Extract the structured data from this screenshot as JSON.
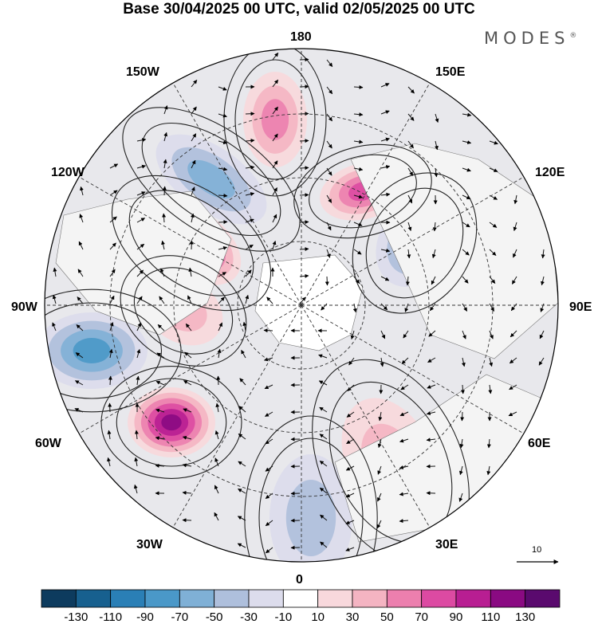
{
  "title": "Base 30/04/2025 00 UTC, valid 02/05/2025 00 UTC",
  "brand": "MODES",
  "brand_mark": "®",
  "longitude_labels": {
    "top": "180",
    "bottom": "0",
    "left": "90W",
    "right": "90E",
    "upper_left_1": "150W",
    "upper_left_2": "120W",
    "upper_right_1": "150E",
    "upper_right_2": "120E",
    "lower_left_1": "60W",
    "lower_left_2": "30W",
    "lower_right_1": "60E",
    "lower_right_2": "30E"
  },
  "colorbar": {
    "labels": [
      "-130",
      "-110",
      "-90",
      "-70",
      "-50",
      "-30",
      "-10",
      "10",
      "30",
      "50",
      "70",
      "90",
      "110",
      "130"
    ],
    "colors": [
      "#0d3b5e",
      "#17608f",
      "#2a7fb6",
      "#4a98c8",
      "#7fb0d6",
      "#aebfdc",
      "#dcdcec",
      "#ffffff",
      "#f8d8dc",
      "#f4b4c2",
      "#ec7fae",
      "#dc4aa2",
      "#b81e92",
      "#8a0a82",
      "#5a0a6e"
    ]
  },
  "vector_reference": {
    "label": "10"
  },
  "map": {
    "land_color": "#eeeeee",
    "anomalies": [
      {
        "value": 60,
        "sign": "positive"
      },
      {
        "value": -60,
        "sign": "negative"
      },
      {
        "value": 120,
        "sign": "positive"
      },
      {
        "value": 80,
        "sign": "positive"
      },
      {
        "value": -50,
        "sign": "negative"
      },
      {
        "value": 40,
        "sign": "positive"
      },
      {
        "value": -70,
        "sign": "negative"
      },
      {
        "value": 110,
        "sign": "positive"
      },
      {
        "value": -30,
        "sign": "negative"
      },
      {
        "value": 30,
        "sign": "positive"
      }
    ]
  }
}
